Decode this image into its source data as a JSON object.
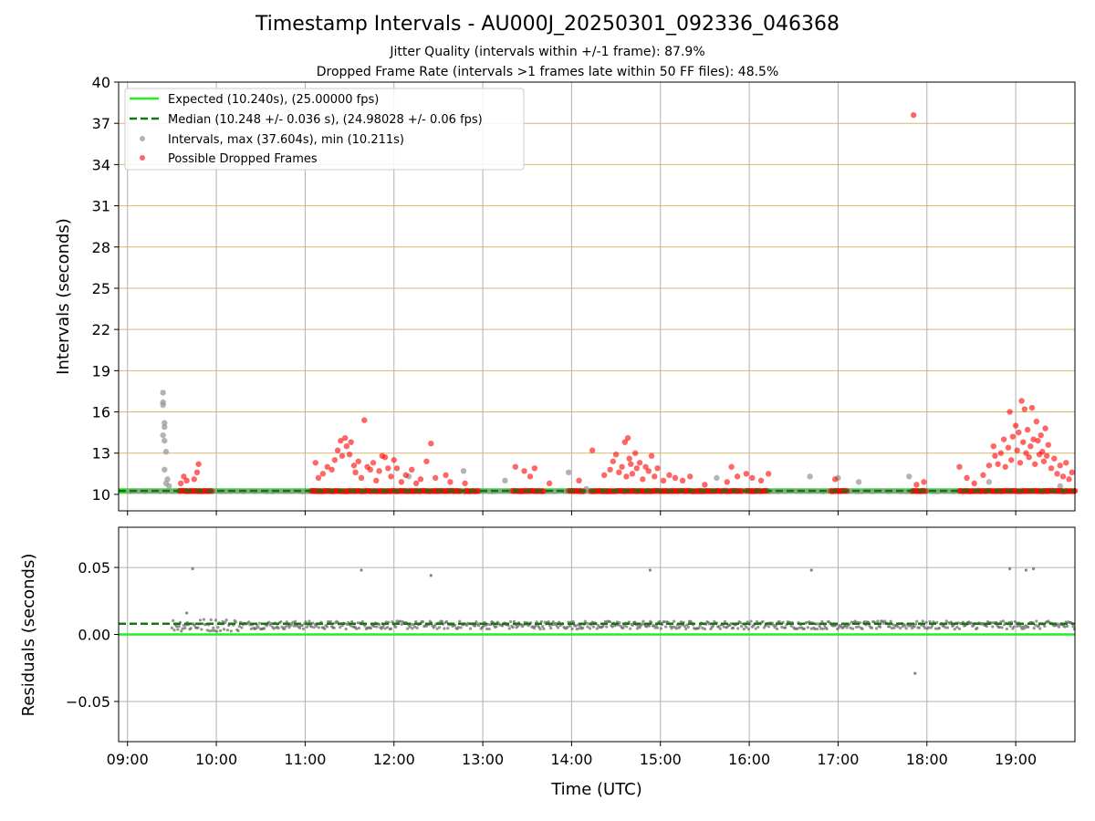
{
  "figure": {
    "title": "Timestamp Intervals - AU000J_20250301_092336_046368",
    "subtitle_1": "Jitter Quality (intervals within +/-1 frame): 87.9%",
    "subtitle_2": "Dropped Frame Rate (intervals >1 frames late within 50 FF files): 48.5%"
  },
  "colors": {
    "expected": "#22ee22",
    "median": "#117711",
    "intervals": "#999999",
    "dropped": "#ff0000",
    "residuals": "#666666",
    "hgrid_top": "#d4b96a",
    "grid": "#b0b0b0"
  },
  "chart_data": [
    {
      "type": "scatter",
      "xlabel": "",
      "ylabel": "Intervals (seconds)",
      "xlim": [
        "08:54",
        "19:40"
      ],
      "ylim": [
        8.8,
        40
      ],
      "yticks": [
        10,
        13,
        16,
        19,
        22,
        25,
        28,
        31,
        34,
        37,
        40
      ],
      "grid": "on",
      "legend_position": "top-left",
      "legend": [
        "Expected (10.240s), (25.00000 fps)",
        "Median (10.248 +/- 0.036 s), (24.98028 +/- 0.06 fps)",
        "Intervals, max (37.604s), min (10.211s)",
        "Possible Dropped Frames"
      ],
      "expected_line": 10.24,
      "median_line": 10.248,
      "series": [
        {
          "name": "Intervals, max (37.604s), min (10.211s)",
          "points": [
            [
              "09:24",
              17.4
            ],
            [
              "09:24",
              16.7
            ],
            [
              "09:24",
              16.5
            ],
            [
              "09:25",
              15.2
            ],
            [
              "09:25",
              14.9
            ],
            [
              "09:24",
              14.3
            ],
            [
              "09:25",
              13.9
            ],
            [
              "09:26",
              13.1
            ],
            [
              "09:25",
              11.8
            ],
            [
              "09:27",
              11.1
            ],
            [
              "09:26",
              10.8
            ],
            [
              "09:28",
              10.6
            ],
            [
              "12:10",
              11.3
            ],
            [
              "12:47",
              11.7
            ],
            [
              "13:15",
              11.0
            ],
            [
              "13:58",
              11.6
            ],
            [
              "14:10",
              10.4
            ],
            [
              "15:38",
              11.2
            ],
            [
              "16:41",
              11.3
            ],
            [
              "17:00",
              11.2
            ],
            [
              "17:14",
              10.9
            ],
            [
              "17:48",
              11.3
            ],
            [
              "18:42",
              10.9
            ],
            [
              "19:30",
              10.6
            ]
          ]
        },
        {
          "name": "Possible Dropped Frames",
          "points": [
            [
              "09:38",
              11.3
            ],
            [
              "09:40",
              11.0
            ],
            [
              "09:45",
              11.1
            ],
            [
              "09:48",
              12.2
            ],
            [
              "09:47",
              11.6
            ],
            [
              "09:36",
              10.8
            ],
            [
              "11:07",
              12.3
            ],
            [
              "11:09",
              11.2
            ],
            [
              "11:12",
              11.5
            ],
            [
              "11:15",
              12.0
            ],
            [
              "11:18",
              11.8
            ],
            [
              "11:20",
              12.5
            ],
            [
              "11:22",
              13.2
            ],
            [
              "11:24",
              13.9
            ],
            [
              "11:25",
              12.8
            ],
            [
              "11:27",
              14.1
            ],
            [
              "11:28",
              13.5
            ],
            [
              "11:30",
              12.9
            ],
            [
              "11:31",
              13.8
            ],
            [
              "11:33",
              12.1
            ],
            [
              "11:34",
              11.6
            ],
            [
              "11:36",
              12.4
            ],
            [
              "11:38",
              11.2
            ],
            [
              "11:40",
              15.4
            ],
            [
              "11:42",
              12.0
            ],
            [
              "11:44",
              11.8
            ],
            [
              "11:46",
              12.3
            ],
            [
              "11:48",
              11.0
            ],
            [
              "11:50",
              11.7
            ],
            [
              "11:52",
              12.8
            ],
            [
              "11:54",
              12.7
            ],
            [
              "11:56",
              11.9
            ],
            [
              "11:58",
              11.3
            ],
            [
              "12:00",
              12.5
            ],
            [
              "12:02",
              11.9
            ],
            [
              "12:05",
              10.9
            ],
            [
              "12:08",
              11.4
            ],
            [
              "12:12",
              11.8
            ],
            [
              "12:15",
              10.8
            ],
            [
              "12:18",
              11.1
            ],
            [
              "12:22",
              12.4
            ],
            [
              "12:25",
              13.7
            ],
            [
              "12:28",
              11.2
            ],
            [
              "12:35",
              11.4
            ],
            [
              "12:38",
              10.9
            ],
            [
              "12:48",
              10.8
            ],
            [
              "13:22",
              12.0
            ],
            [
              "13:28",
              11.7
            ],
            [
              "13:32",
              11.3
            ],
            [
              "13:35",
              11.9
            ],
            [
              "13:45",
              10.8
            ],
            [
              "14:05",
              11.0
            ],
            [
              "14:14",
              13.2
            ],
            [
              "14:22",
              11.4
            ],
            [
              "14:26",
              11.8
            ],
            [
              "14:28",
              12.4
            ],
            [
              "14:30",
              12.9
            ],
            [
              "14:32",
              11.6
            ],
            [
              "14:34",
              12.0
            ],
            [
              "14:36",
              13.8
            ],
            [
              "14:37",
              11.3
            ],
            [
              "14:38",
              14.1
            ],
            [
              "14:39",
              12.6
            ],
            [
              "14:40",
              12.2
            ],
            [
              "14:41",
              11.5
            ],
            [
              "14:43",
              13.0
            ],
            [
              "14:44",
              11.9
            ],
            [
              "14:46",
              12.3
            ],
            [
              "14:48",
              11.1
            ],
            [
              "14:50",
              12.0
            ],
            [
              "14:52",
              11.7
            ],
            [
              "14:54",
              12.8
            ],
            [
              "14:56",
              11.3
            ],
            [
              "14:58",
              11.9
            ],
            [
              "15:02",
              11.0
            ],
            [
              "15:06",
              11.4
            ],
            [
              "15:10",
              11.2
            ],
            [
              "15:15",
              11.0
            ],
            [
              "15:20",
              11.3
            ],
            [
              "15:30",
              10.7
            ],
            [
              "15:45",
              10.9
            ],
            [
              "15:48",
              12.0
            ],
            [
              "15:52",
              11.3
            ],
            [
              "15:58",
              11.5
            ],
            [
              "16:02",
              11.2
            ],
            [
              "16:08",
              11.0
            ],
            [
              "16:13",
              11.5
            ],
            [
              "16:58",
              11.1
            ],
            [
              "17:53",
              10.7
            ],
            [
              "17:58",
              10.9
            ],
            [
              "18:22",
              12.0
            ],
            [
              "18:27",
              11.2
            ],
            [
              "18:32",
              10.8
            ],
            [
              "18:38",
              11.4
            ],
            [
              "18:42",
              12.1
            ],
            [
              "18:45",
              13.5
            ],
            [
              "18:46",
              12.8
            ],
            [
              "18:48",
              12.2
            ],
            [
              "18:50",
              13.0
            ],
            [
              "18:52",
              14.0
            ],
            [
              "18:53",
              12.0
            ],
            [
              "18:55",
              13.4
            ],
            [
              "18:56",
              16.0
            ],
            [
              "18:57",
              12.5
            ],
            [
              "18:58",
              14.2
            ],
            [
              "19:00",
              15.0
            ],
            [
              "19:01",
              13.2
            ],
            [
              "19:02",
              14.5
            ],
            [
              "19:03",
              12.3
            ],
            [
              "19:04",
              16.8
            ],
            [
              "19:05",
              13.8
            ],
            [
              "19:06",
              16.2
            ],
            [
              "19:07",
              13.0
            ],
            [
              "19:08",
              14.7
            ],
            [
              "19:09",
              12.7
            ],
            [
              "19:10",
              13.5
            ],
            [
              "19:11",
              16.3
            ],
            [
              "19:12",
              14.0
            ],
            [
              "19:13",
              12.2
            ],
            [
              "19:14",
              15.3
            ],
            [
              "19:15",
              13.9
            ],
            [
              "19:16",
              12.9
            ],
            [
              "19:17",
              14.3
            ],
            [
              "19:18",
              13.1
            ],
            [
              "19:19",
              12.4
            ],
            [
              "19:20",
              14.8
            ],
            [
              "19:21",
              12.8
            ],
            [
              "19:22",
              13.6
            ],
            [
              "19:24",
              11.9
            ],
            [
              "19:26",
              12.6
            ],
            [
              "19:28",
              11.5
            ],
            [
              "19:30",
              12.1
            ],
            [
              "19:32",
              11.3
            ],
            [
              "19:34",
              12.3
            ],
            [
              "19:36",
              11.1
            ],
            [
              "19:38",
              11.6
            ],
            [
              "17:51",
              37.6
            ]
          ],
          "baseline_runs": [
            [
              "09:35",
              "09:57"
            ],
            [
              "11:04",
              "12:45"
            ],
            [
              "12:48",
              "12:57"
            ],
            [
              "13:20",
              "13:41"
            ],
            [
              "13:58",
              "14:08"
            ],
            [
              "14:13",
              "15:55"
            ],
            [
              "15:58",
              "16:12"
            ],
            [
              "16:55",
              "17:06"
            ],
            [
              "17:50",
              "17:59"
            ],
            [
              "18:22",
              "19:40"
            ]
          ],
          "baseline_value": 10.24
        }
      ]
    },
    {
      "type": "scatter",
      "xlabel": "Time (UTC)",
      "ylabel": "Residuals (seconds)",
      "xlim": [
        "08:54",
        "19:40"
      ],
      "ylim": [
        -0.08,
        0.08
      ],
      "yticks": [
        -0.05,
        0.0,
        0.05
      ],
      "ytick_labels": [
        "−0.05",
        "0.00",
        "0.05"
      ],
      "xticks": [
        "09:00",
        "10:00",
        "11:00",
        "12:00",
        "13:00",
        "14:00",
        "15:00",
        "16:00",
        "17:00",
        "18:00",
        "19:00"
      ],
      "grid": "on",
      "expected_line": 0.0,
      "median_line": 0.008,
      "band": {
        "from": "09:30",
        "to": "19:40",
        "center": 0.007,
        "spread": 0.003
      },
      "outliers": [
        [
          "09:44",
          0.049
        ],
        [
          "11:38",
          0.048
        ],
        [
          "12:25",
          0.044
        ],
        [
          "14:53",
          0.048
        ],
        [
          "16:42",
          0.048
        ],
        [
          "18:56",
          0.049
        ],
        [
          "19:07",
          0.048
        ],
        [
          "19:12",
          0.049
        ],
        [
          "17:52",
          -0.029
        ],
        [
          "09:40",
          0.016
        ]
      ]
    }
  ]
}
